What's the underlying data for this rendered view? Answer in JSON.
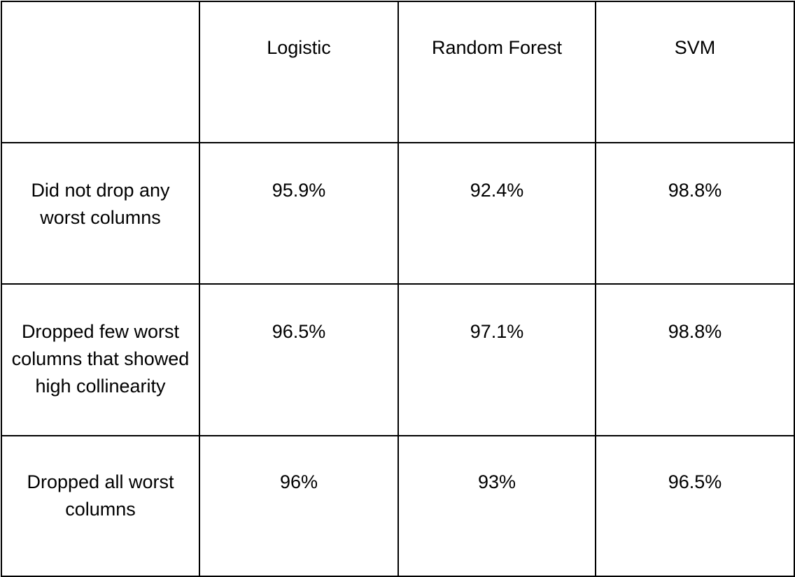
{
  "table": {
    "header": {
      "corner": "",
      "columns": [
        "Logistic",
        "Random Forest",
        "SVM"
      ]
    },
    "rows": [
      {
        "label": "Did not drop any worst columns",
        "values": [
          "95.9%",
          "92.4%",
          "98.8%"
        ]
      },
      {
        "label": "Dropped few worst columns that showed high collinearity",
        "values": [
          "96.5%",
          "97.1%",
          "98.8%"
        ]
      },
      {
        "label": "Dropped all worst columns",
        "values": [
          "96%",
          "93%",
          "96.5%"
        ]
      }
    ]
  }
}
